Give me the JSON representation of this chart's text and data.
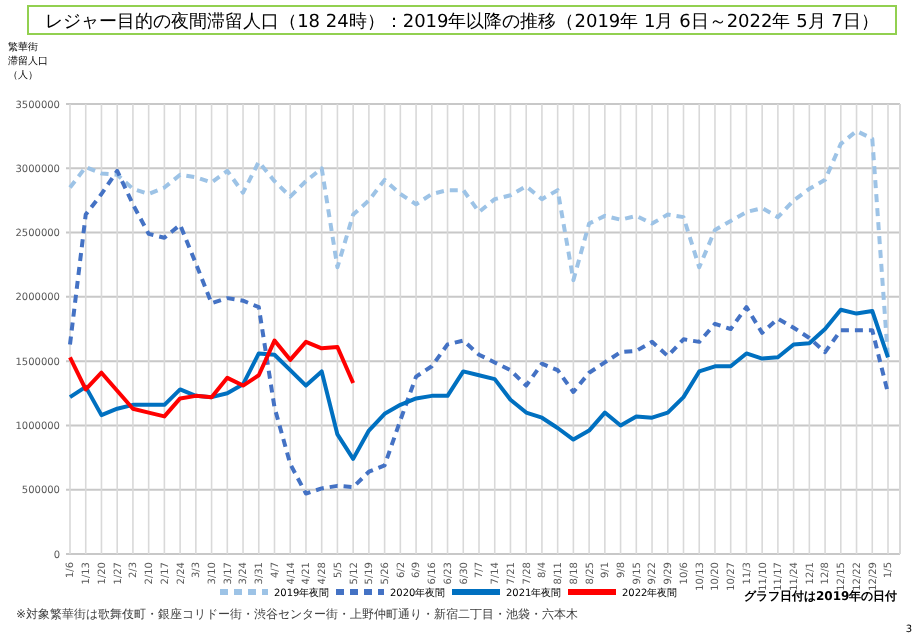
{
  "chart_data": {
    "type": "line",
    "title": "レジャー目的の夜間滞留人口（18 24時）：2019年以降の推移（2019年 1月 6日～2022年 5月 7日）",
    "ylabel": "繁華街滞留人口（人）",
    "categories": [
      "1/6",
      "1/13",
      "1/20",
      "1/27",
      "2/3",
      "2/10",
      "2/17",
      "2/24",
      "3/3",
      "3/10",
      "3/17",
      "3/24",
      "3/31",
      "4/7",
      "4/14",
      "4/21",
      "4/28",
      "5/5",
      "5/12",
      "5/19",
      "5/26",
      "6/2",
      "6/9",
      "6/16",
      "6/23",
      "6/30",
      "7/7",
      "7/14",
      "7/21",
      "7/28",
      "8/4",
      "8/11",
      "8/18",
      "8/25",
      "9/1",
      "9/8",
      "9/15",
      "9/22",
      "9/29",
      "10/6",
      "10/13",
      "10/20",
      "10/27",
      "11/3",
      "11/10",
      "11/17",
      "11/24",
      "12/1",
      "12/8",
      "12/15",
      "12/22",
      "12/29",
      "1/5"
    ],
    "series": [
      {
        "name": "2019年夜間",
        "color": "#9dc3e6",
        "line_style": "dashed",
        "values": [
          2850000,
          3010000,
          2960000,
          2950000,
          2840000,
          2800000,
          2850000,
          2950000,
          2930000,
          2890000,
          2980000,
          2810000,
          3050000,
          2900000,
          2780000,
          2900000,
          3000000,
          2230000,
          2640000,
          2750000,
          2910000,
          2800000,
          2720000,
          2800000,
          2830000,
          2830000,
          2660000,
          2760000,
          2790000,
          2860000,
          2760000,
          2830000,
          2130000,
          2570000,
          2630000,
          2600000,
          2630000,
          2570000,
          2640000,
          2620000,
          2230000,
          2520000,
          2590000,
          2660000,
          2690000,
          2620000,
          2750000,
          2840000,
          2910000,
          3190000,
          3290000,
          3230000,
          1520000
        ]
      },
      {
        "name": "2020年夜間",
        "color": "#4472c4",
        "line_style": "dashed",
        "values": [
          1630000,
          2640000,
          2800000,
          2980000,
          2720000,
          2490000,
          2460000,
          2560000,
          2260000,
          1950000,
          1990000,
          1970000,
          1920000,
          1140000,
          700000,
          470000,
          510000,
          530000,
          520000,
          640000,
          690000,
          1040000,
          1380000,
          1460000,
          1630000,
          1660000,
          1550000,
          1490000,
          1430000,
          1310000,
          1480000,
          1430000,
          1260000,
          1410000,
          1490000,
          1570000,
          1580000,
          1650000,
          1540000,
          1670000,
          1650000,
          1790000,
          1750000,
          1920000,
          1720000,
          1830000,
          1760000,
          1680000,
          1570000,
          1740000,
          1740000,
          1740000,
          1250000
        ]
      },
      {
        "name": "2021年夜間",
        "color": "#0070c0",
        "line_style": "solid",
        "values": [
          1220000,
          1300000,
          1080000,
          1130000,
          1160000,
          1160000,
          1160000,
          1280000,
          1230000,
          1220000,
          1250000,
          1320000,
          1560000,
          1550000,
          1430000,
          1310000,
          1420000,
          930000,
          740000,
          960000,
          1090000,
          1160000,
          1210000,
          1230000,
          1230000,
          1420000,
          1390000,
          1360000,
          1200000,
          1100000,
          1060000,
          980000,
          890000,
          960000,
          1100000,
          1000000,
          1070000,
          1060000,
          1100000,
          1220000,
          1420000,
          1460000,
          1460000,
          1560000,
          1520000,
          1530000,
          1630000,
          1640000,
          1750000,
          1900000,
          1870000,
          1890000,
          1530000
        ]
      },
      {
        "name": "2022年夜間",
        "color": "#ff0000",
        "line_style": "solid",
        "values": [
          1530000,
          1280000,
          1410000,
          1270000,
          1130000,
          1100000,
          1070000,
          1210000,
          1230000,
          1220000,
          1370000,
          1310000,
          1390000,
          1660000,
          1510000,
          1650000,
          1600000,
          1610000,
          1330000,
          null,
          null,
          null,
          null,
          null,
          null,
          null,
          null,
          null,
          null,
          null,
          null,
          null,
          null,
          null,
          null,
          null,
          null,
          null,
          null,
          null,
          null,
          null,
          null,
          null,
          null,
          null,
          null,
          null,
          null,
          null,
          null,
          null,
          null
        ]
      }
    ],
    "ylim": [
      0,
      3500000
    ],
    "yticks": [
      0,
      500000,
      1000000,
      1500000,
      2000000,
      2500000,
      3000000,
      3500000
    ],
    "grid": true,
    "legend": "bottom",
    "annotations": [
      "グラフ日付は2019年の日付",
      "※対象繁華街は歌舞伎町・銀座コリドー街・渋谷センター街・上野仲町通り・新宿二丁目・池袋・六本木",
      "3"
    ]
  }
}
